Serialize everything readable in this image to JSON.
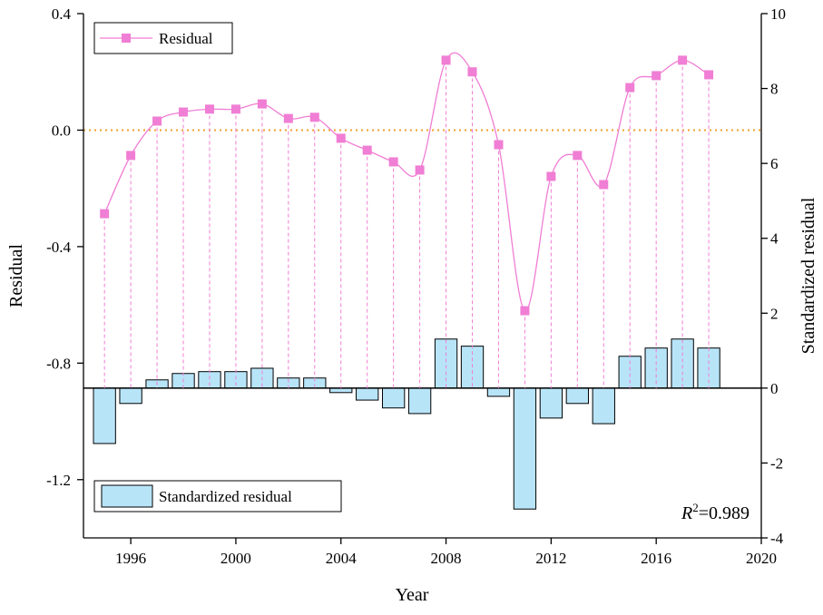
{
  "chart_data": {
    "type": "bar-line",
    "x_label": "Year",
    "y_label": "Residual",
    "y2_label": "Standardized residual",
    "x": [
      1995,
      1996,
      1997,
      1998,
      1999,
      2000,
      2001,
      2002,
      2003,
      2004,
      2005,
      2006,
      2007,
      2008,
      2009,
      2010,
      2011,
      2012,
      2013,
      2014,
      2015,
      2016,
      2017,
      2018
    ],
    "series": [
      {
        "name": "Residual",
        "type": "line",
        "color": "#f07ed4",
        "smooth": true,
        "drop_lines": true,
        "legend": "upper left",
        "values": [
          -0.287,
          -0.087,
          0.031,
          0.062,
          0.072,
          0.072,
          0.09,
          0.04,
          0.044,
          -0.028,
          -0.069,
          -0.109,
          -0.137,
          0.24,
          0.2,
          -0.05,
          -0.62,
          -0.159,
          -0.087,
          -0.187,
          0.146,
          0.187,
          0.24,
          0.19
        ]
      },
      {
        "name": "Standardized residual",
        "type": "bar",
        "axis": "y2",
        "color": "#b8e4f8",
        "legend": "lower left",
        "values": [
          -1.48,
          -0.41,
          0.22,
          0.39,
          0.44,
          0.44,
          0.53,
          0.27,
          0.27,
          -0.12,
          -0.32,
          -0.53,
          -0.68,
          1.31,
          1.12,
          -0.22,
          -3.23,
          -0.8,
          -0.41,
          -0.95,
          0.85,
          1.07,
          1.31,
          1.07
        ]
      }
    ],
    "xlim": [
      1994.2,
      2020
    ],
    "xticks": [
      1996,
      2000,
      2004,
      2008,
      2012,
      2016,
      2020
    ],
    "ylim": [
      -1.4,
      0.4
    ],
    "yticks": [
      {
        "value": -1.2,
        "label": "-1.2"
      },
      {
        "value": -0.8,
        "label": "-0.8"
      },
      {
        "value": -0.4,
        "label": "-0.4"
      },
      {
        "value": 0,
        "label": "0.0"
      },
      {
        "value": 0.4,
        "label": "0.4"
      }
    ],
    "y2lim": [
      -4,
      10
    ],
    "y2ticks": [
      -4,
      -2,
      0,
      2,
      4,
      6,
      8,
      10
    ],
    "reference_line": {
      "value": 0,
      "color": "#f0a030"
    },
    "annotation": {
      "symbol": "R",
      "sup": "2",
      "text": "=0.989"
    }
  }
}
